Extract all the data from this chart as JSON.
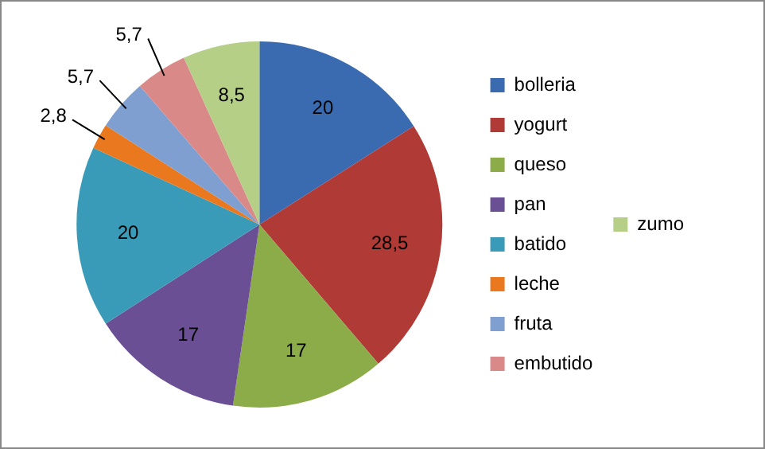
{
  "chart_data": {
    "type": "pie",
    "categories": [
      "bolleria",
      "yogurt",
      "queso",
      "pan",
      "batido",
      "leche",
      "fruta",
      "embutido",
      "zumo"
    ],
    "values": [
      20,
      28.5,
      17,
      17,
      20,
      2.8,
      5.7,
      5.7,
      8.5
    ],
    "value_labels": [
      "20",
      "28,5",
      "17",
      "17",
      "20",
      "2,8",
      "5,7",
      "5,7",
      "8,5"
    ],
    "colors": [
      "#3a6ab0",
      "#b03a36",
      "#8cac4a",
      "#6b4f94",
      "#3a9bb8",
      "#e9781f",
      "#7f9fd0",
      "#d98a88",
      "#b5cf87"
    ],
    "legend": "right"
  }
}
